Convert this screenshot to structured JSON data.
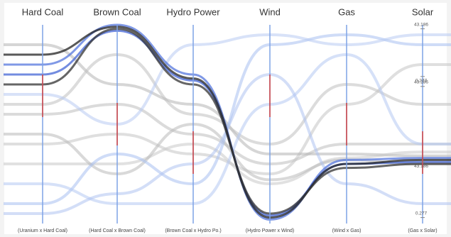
{
  "chart_data": {
    "type": "parallel",
    "axes": [
      "Hard Coal",
      "Brown Coal",
      "Hydro Power",
      "Wind",
      "Gas",
      "Solar"
    ],
    "pair_labels": [
      "(Uranium x Hard Coal)",
      "(Hard Coal x Brown Coal)",
      "(Brown Coal x Hydro Po.)",
      "(Hydro Power x Wind)",
      "(Wind x Gas)",
      "(Gas x Solar)"
    ],
    "ylim": [
      0,
      1
    ],
    "solar_ticks": [
      {
        "value": 0.98,
        "label": "43.186"
      },
      {
        "value": 0.74,
        "label": "0.277"
      },
      {
        "value": 0.69,
        "label": "43.186"
      },
      {
        "value": 0.31,
        "label": "43.186"
      },
      {
        "value": 0.03,
        "label": "0.277"
      }
    ],
    "series": [
      {
        "color": "#bdbdbd",
        "values": [
          0.55,
          0.6,
          0.45,
          0.3,
          0.4,
          0.4
        ]
      },
      {
        "color": "#c4c4c4",
        "values": [
          0.4,
          0.45,
          0.35,
          0.25,
          0.6,
          0.8
        ]
      },
      {
        "color": "#b5b5b5",
        "values": [
          0.9,
          0.7,
          0.6,
          0.35,
          0.35,
          0.34
        ]
      },
      {
        "color": "#c8c8c8",
        "values": [
          0.3,
          0.3,
          0.4,
          0.2,
          0.33,
          0.36
        ]
      },
      {
        "color": "#c0c0c0",
        "values": [
          0.6,
          0.85,
          0.55,
          0.4,
          0.7,
          0.6
        ]
      },
      {
        "color": "#bababa",
        "values": [
          0.45,
          0.25,
          0.5,
          0.22,
          0.32,
          0.3
        ]
      },
      {
        "color": "#a8bff0",
        "values": [
          0.1,
          0.35,
          0.2,
          0.9,
          0.95,
          0.9
        ]
      },
      {
        "color": "#b4c8f2",
        "values": [
          0.2,
          0.1,
          0.1,
          0.6,
          0.85,
          0.4
        ]
      },
      {
        "color": "#b8caf3",
        "values": [
          0.65,
          0.5,
          0.9,
          0.95,
          0.9,
          0.95
        ]
      },
      {
        "color": "#aec3f0",
        "values": [
          0.05,
          0.15,
          0.3,
          0.75,
          0.2,
          0.1
        ]
      },
      {
        "color": "#5577dd",
        "values": [
          0.8,
          1.0,
          0.75,
          0.02,
          0.32,
          0.33
        ]
      },
      {
        "color": "#4466d6",
        "values": [
          0.75,
          0.97,
          0.72,
          0.04,
          0.3,
          0.31
        ]
      },
      {
        "color": "#222222",
        "values": [
          0.85,
          0.99,
          0.73,
          0.03,
          0.3,
          0.32
        ]
      },
      {
        "color": "#333333",
        "values": [
          0.7,
          0.98,
          0.7,
          0.05,
          0.28,
          0.3
        ]
      }
    ]
  }
}
